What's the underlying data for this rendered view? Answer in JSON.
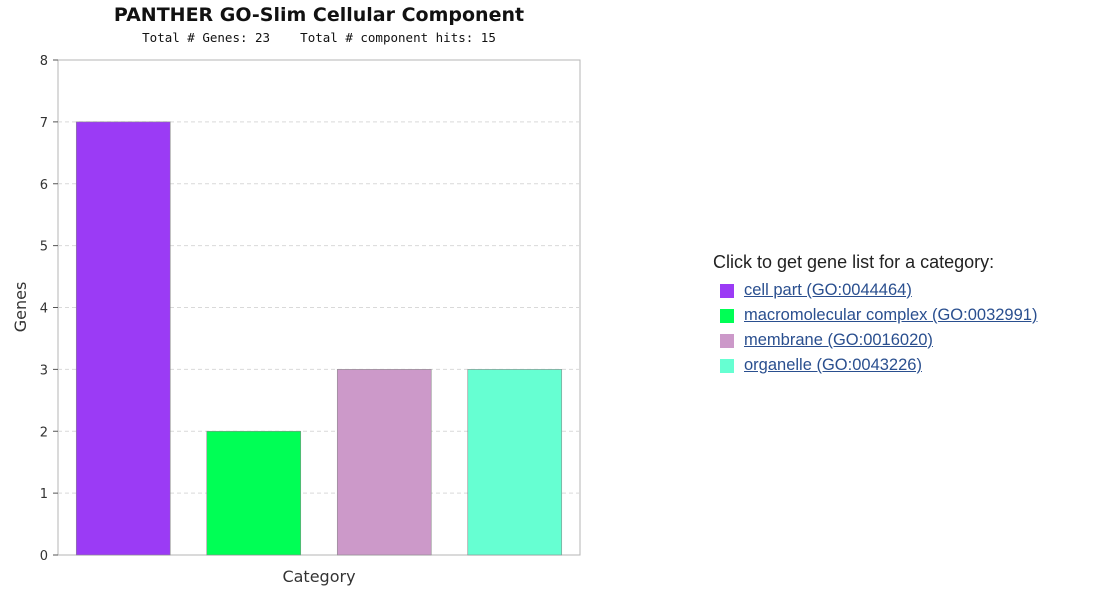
{
  "chart_data": {
    "type": "bar",
    "title": "PANTHER GO-Slim Cellular Component",
    "subtitle": "Total # Genes: 23    Total # component hits: 15",
    "xlabel": "Category",
    "ylabel": "Genes",
    "ylim": [
      0,
      8
    ],
    "yticks": [
      "0",
      "1",
      "2",
      "3",
      "4",
      "5",
      "6",
      "7",
      "8"
    ],
    "grid": true,
    "categories": [
      "cell part",
      "macromolecular complex",
      "membrane",
      "organelle"
    ],
    "values": [
      7,
      2,
      3,
      3
    ],
    "colors": [
      "#9b3bf5",
      "#00ff55",
      "#cc99c9",
      "#66ffd2"
    ]
  },
  "legend": {
    "heading": "Click to get gene list for a category:",
    "items": [
      {
        "label": "cell part (GO:0044464)",
        "color": "#9b3bf5"
      },
      {
        "label": "macromolecular complex (GO:0032991)",
        "color": "#00ff55"
      },
      {
        "label": "membrane (GO:0016020)",
        "color": "#cc99c9"
      },
      {
        "label": "organelle (GO:0043226)",
        "color": "#66ffd2"
      }
    ]
  }
}
